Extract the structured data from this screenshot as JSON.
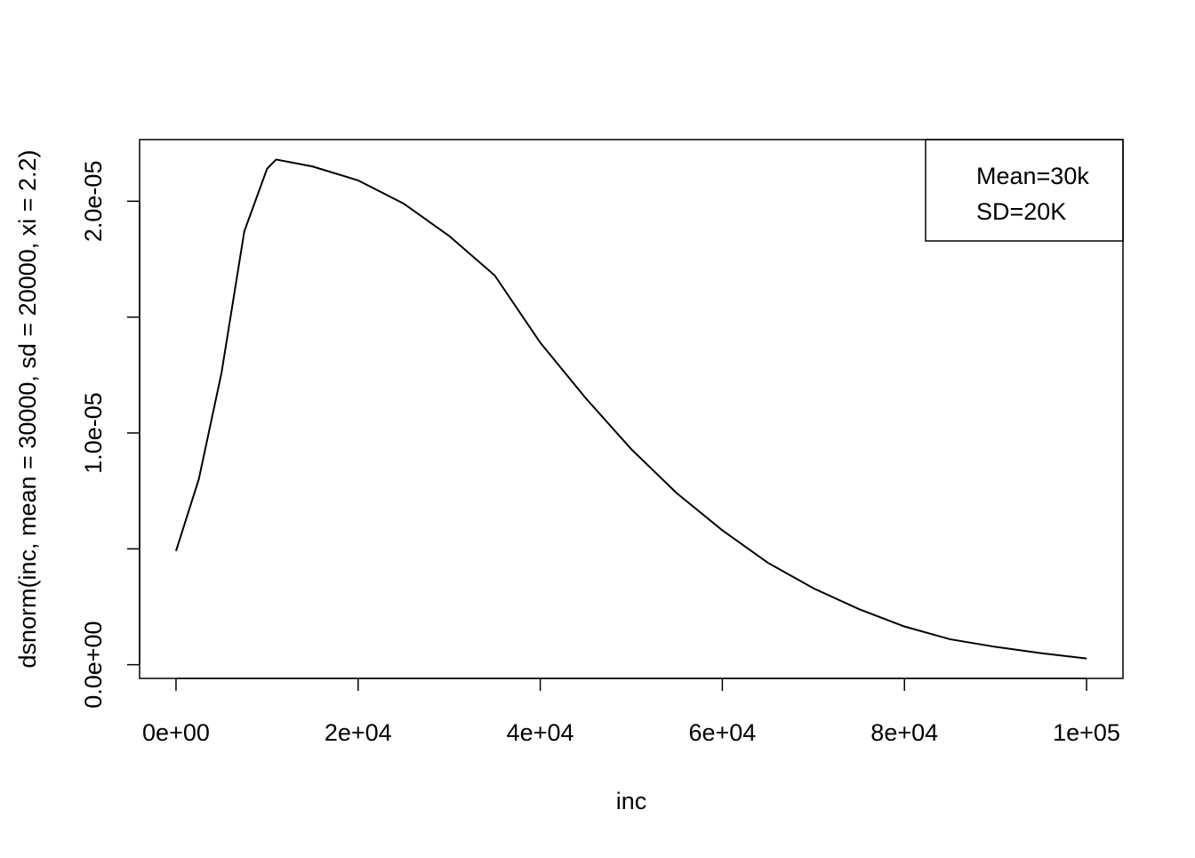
{
  "chart_data": {
    "type": "line",
    "xlabel": "inc",
    "ylabel": "dsnorm(inc, mean = 30000, sd = 20000, xi = 2.2)",
    "x": [
      0,
      2500,
      5000,
      7500,
      10000,
      11000,
      15000,
      20000,
      25000,
      30000,
      35000,
      40000,
      45000,
      50000,
      55000,
      60000,
      65000,
      70000,
      75000,
      80000,
      85000,
      90000,
      95000,
      100000
    ],
    "series": [
      {
        "color": "#000000",
        "values": [
          4.91e-06,
          8e-06,
          1.26e-05,
          1.87e-05,
          2.14e-05,
          2.18e-05,
          2.15e-05,
          2.09e-05,
          1.99e-05,
          1.85e-05,
          1.68e-05,
          1.39e-05,
          1.15e-05,
          9.3e-06,
          7.4e-06,
          5.8e-06,
          4.4e-06,
          3.3e-06,
          2.4e-06,
          1.65e-06,
          1.1e-06,
          7.7e-07,
          5e-07,
          2.7e-07
        ]
      }
    ],
    "xlim": [
      -4000,
      104000
    ],
    "ylim": [
      -5.9e-07,
      2.266e-05
    ],
    "xticks": [
      {
        "value": 0,
        "label": "0e+00"
      },
      {
        "value": 20000,
        "label": "2e+04"
      },
      {
        "value": 40000,
        "label": "4e+04"
      },
      {
        "value": 60000,
        "label": "6e+04"
      },
      {
        "value": 80000,
        "label": "8e+04"
      },
      {
        "value": 100000,
        "label": "1e+05"
      }
    ],
    "yticks": [
      {
        "value": 0,
        "label": "0.0e+00"
      },
      {
        "value": 1e-05,
        "label": "1.0e-05"
      },
      {
        "value": 2e-05,
        "label": "2.0e-05"
      }
    ],
    "yticks_unlabeled": [
      5e-06,
      1.5e-05
    ],
    "legend": [
      "Mean=30k",
      "SD=20K"
    ],
    "legend_position": "topright",
    "grid": false
  }
}
